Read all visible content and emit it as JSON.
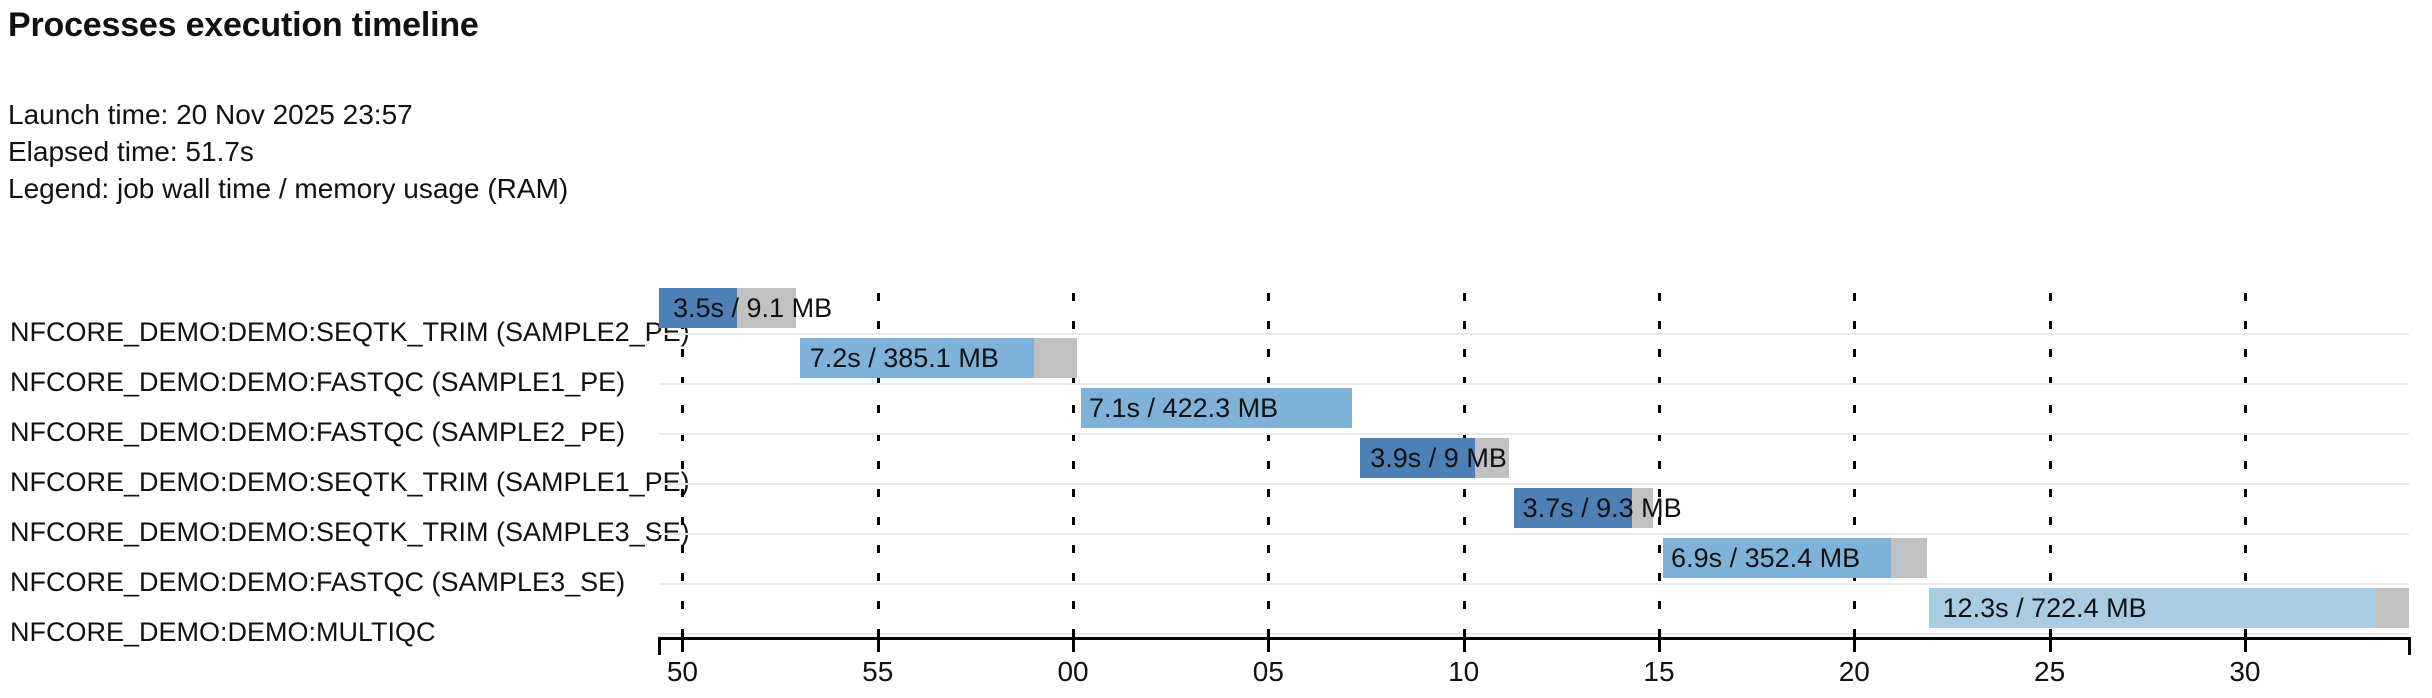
{
  "header": {
    "title": "Processes execution timeline",
    "launch_time": "Launch time: 20 Nov 2025 23:57",
    "elapsed_time": "Elapsed time: 51.7s",
    "legend": "Legend: job wall time / memory usage (RAM)"
  },
  "colors": {
    "seqtk_trim": "#4d80b6",
    "fastqc": "#7fb2d8",
    "multiqc": "#a9cce3",
    "overhead_gray": "#c1c1c1",
    "row_divider": "#e9e9e9",
    "axis": "#000000",
    "text": "#111111"
  },
  "chart_data": {
    "type": "gantt-timeline",
    "title": "Processes execution timeline",
    "time_unit": "seconds after 23:57:00",
    "axis": {
      "start_s": 49.4,
      "end_s": 94.2,
      "tick_interval_s": 5,
      "grid": "dashed-vertical"
    },
    "ticks": [
      {
        "s": 50,
        "label": "50"
      },
      {
        "s": 55,
        "label": "55"
      },
      {
        "s": 60,
        "label": "00"
      },
      {
        "s": 65,
        "label": "05"
      },
      {
        "s": 70,
        "label": "10"
      },
      {
        "s": 75,
        "label": "15"
      },
      {
        "s": 80,
        "label": "20"
      },
      {
        "s": 85,
        "label": "25"
      },
      {
        "s": 90,
        "label": "30"
      }
    ],
    "rows": [
      {
        "label": "NFCORE_DEMO:DEMO:SEQTK_TRIM (SAMPLE2_PE)",
        "process": "seqtk_trim",
        "bar_label": "3.5s / 9.1 MB",
        "wall_time": "3.5s",
        "memory": "9.1 MB",
        "submit_s": 49.4,
        "start_s": 49.4,
        "end_s": 51.4,
        "complete_s": 52.9
      },
      {
        "label": "NFCORE_DEMO:DEMO:FASTQC (SAMPLE1_PE)",
        "process": "fastqc",
        "bar_label": "7.2s / 385.1 MB",
        "wall_time": "7.2s",
        "memory": "385.1 MB",
        "submit_s": 52.9,
        "start_s": 53.0,
        "end_s": 59.0,
        "complete_s": 60.1
      },
      {
        "label": "NFCORE_DEMO:DEMO:FASTQC (SAMPLE2_PE)",
        "process": "fastqc",
        "bar_label": "7.1s / 422.3 MB",
        "wall_time": "7.1s",
        "memory": "422.3 MB",
        "submit_s": 60.05,
        "start_s": 60.2,
        "end_s": 67.15,
        "complete_s": 67.15
      },
      {
        "label": "NFCORE_DEMO:DEMO:SEQTK_TRIM (SAMPLE1_PE)",
        "process": "seqtk_trim",
        "bar_label": "3.9s / 9 MB",
        "wall_time": "3.9s",
        "memory": "9 MB",
        "submit_s": 67.25,
        "start_s": 67.35,
        "end_s": 70.3,
        "complete_s": 71.15
      },
      {
        "label": "NFCORE_DEMO:DEMO:SEQTK_TRIM (SAMPLE3_SE)",
        "process": "seqtk_trim",
        "bar_label": "3.7s / 9.3 MB",
        "wall_time": "3.7s",
        "memory": "9.3 MB",
        "submit_s": 71.15,
        "start_s": 71.3,
        "end_s": 74.3,
        "complete_s": 74.85
      },
      {
        "label": "NFCORE_DEMO:DEMO:FASTQC (SAMPLE3_SE)",
        "process": "fastqc",
        "bar_label": "6.9s / 352.4 MB",
        "wall_time": "6.9s",
        "memory": "352.4 MB",
        "submit_s": 74.95,
        "start_s": 75.1,
        "end_s": 80.95,
        "complete_s": 81.85
      },
      {
        "label": "NFCORE_DEMO:DEMO:MULTIQC",
        "process": "multiqc",
        "bar_label": "12.3s / 722.4 MB",
        "wall_time": "12.3s",
        "memory": "722.4 MB",
        "submit_s": 81.9,
        "start_s": 81.9,
        "end_s": 93.35,
        "complete_s": 94.2
      }
    ]
  }
}
